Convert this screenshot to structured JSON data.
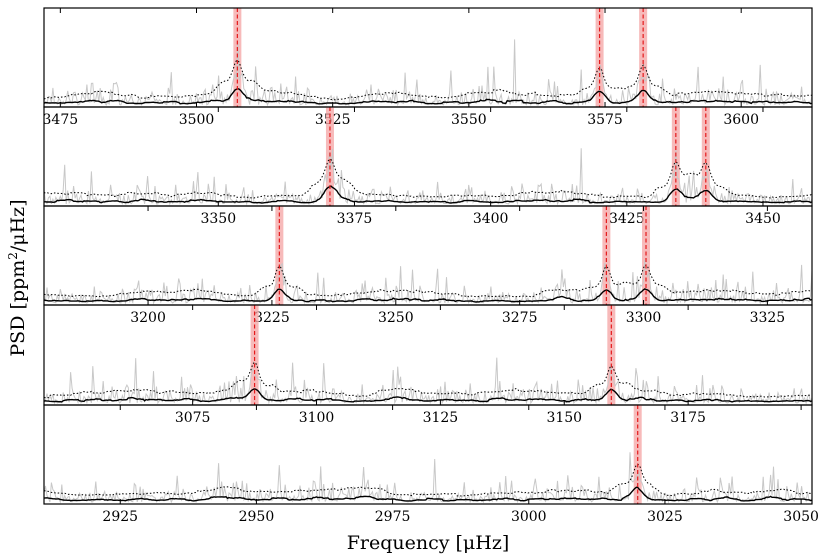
{
  "labels": {
    "ylabel_main": "PSD [ppm",
    "ylabel_sup": "2",
    "ylabel_end": "/μHz]",
    "xlabel": "Frequency [μHz]"
  },
  "colors": {
    "raw_psd": "#c8c8c8",
    "smoothed_psd": "#000000",
    "upper_envelope": "#000000",
    "mode_line": "#e41a1c",
    "mode_band": "#f4a3a3"
  },
  "chart_data": [
    {
      "type": "line",
      "panel": 1,
      "xlim": [
        3472,
        3613
      ],
      "xticks": [
        3475,
        3500,
        3525,
        3550,
        3575,
        3600
      ],
      "series": [
        {
          "style": "raw",
          "values": "noise"
        },
        {
          "style": "smoothed",
          "values": "noise"
        },
        {
          "style": "dotted-envelope",
          "values": "noise"
        }
      ],
      "mode_lines": [
        3507.5,
        3574.0,
        3582.0
      ],
      "grid": false
    },
    {
      "type": "line",
      "panel": 2,
      "xlim": [
        3318,
        3459
      ],
      "xticks": [
        3350,
        3375,
        3400,
        3425,
        3450
      ],
      "series": [
        {
          "style": "raw",
          "values": "noise"
        },
        {
          "style": "smoothed",
          "values": "noise"
        },
        {
          "style": "dotted-envelope",
          "values": "noise"
        }
      ],
      "mode_lines": [
        3370.5,
        3434.0,
        3439.5
      ],
      "grid": false
    },
    {
      "type": "line",
      "panel": 3,
      "xlim": [
        3179,
        3334
      ],
      "xticks": [
        3200,
        3225,
        3250,
        3275,
        3300,
        3325
      ],
      "series": [
        {
          "style": "raw",
          "values": "noise"
        },
        {
          "style": "smoothed",
          "values": "noise"
        },
        {
          "style": "dotted-envelope",
          "values": "noise"
        }
      ],
      "mode_lines": [
        3226.5,
        3292.5,
        3300.5
      ],
      "grid": false
    },
    {
      "type": "line",
      "panel": 4,
      "xlim": [
        3045,
        3200
      ],
      "xticks": [
        3075,
        3100,
        3125,
        3150,
        3175
      ],
      "series": [
        {
          "style": "raw",
          "values": "noise"
        },
        {
          "style": "smoothed",
          "values": "noise"
        },
        {
          "style": "dotted-envelope",
          "values": "noise"
        }
      ],
      "mode_lines": [
        3087.5,
        3159.5
      ],
      "grid": false
    },
    {
      "type": "line",
      "panel": 5,
      "xlim": [
        2911,
        3052
      ],
      "xticks": [
        2925,
        2950,
        2975,
        3000,
        3025,
        3050
      ],
      "series": [
        {
          "style": "raw",
          "values": "noise"
        },
        {
          "style": "smoothed",
          "values": "noise"
        },
        {
          "style": "dotted-envelope",
          "values": "noise"
        }
      ],
      "mode_lines": [
        3020.0
      ],
      "grid": false
    }
  ]
}
